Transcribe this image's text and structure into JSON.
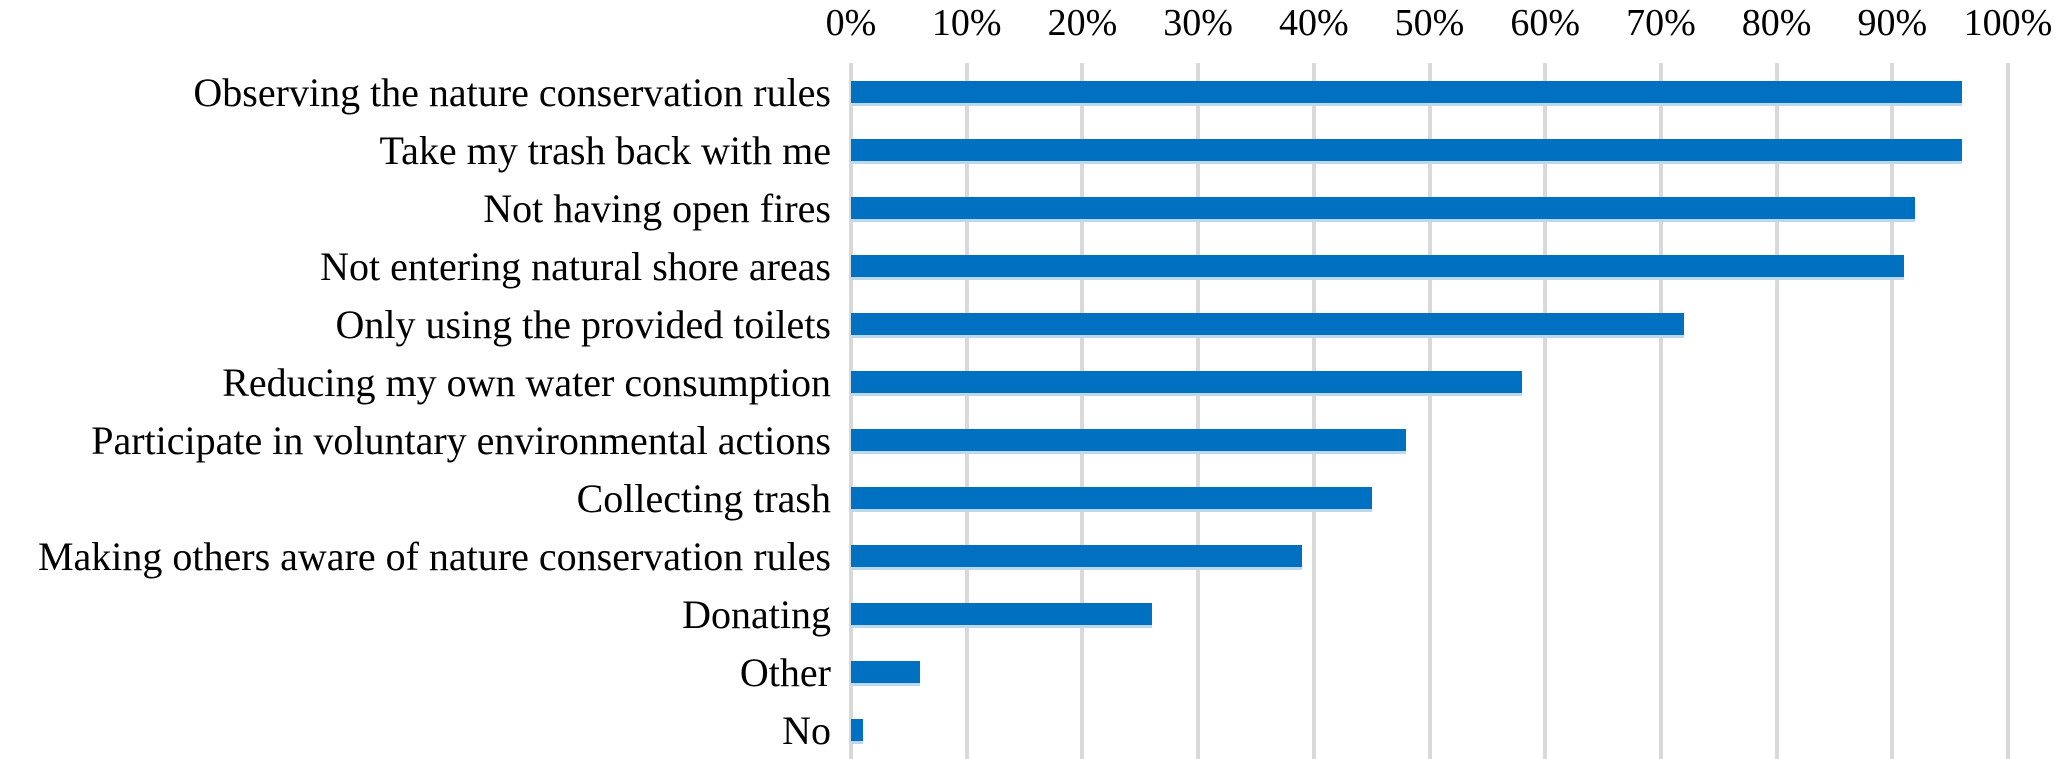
{
  "chart_data": {
    "type": "bar",
    "orientation": "horizontal",
    "title": "",
    "categories": [
      "Observing the nature conservation rules",
      "Take my trash back with me",
      "Not having open fires",
      "Not entering natural shore areas",
      "Only using the provided toilets",
      "Reducing my own water consumption",
      "Participate in voluntary environmental actions",
      "Collecting trash",
      "Making others aware of nature conservation rules",
      "Donating",
      "Other",
      "No"
    ],
    "values": [
      96,
      96,
      92,
      91,
      72,
      58,
      48,
      45,
      39,
      26,
      6,
      1
    ],
    "unit": "%",
    "x_axis": {
      "position": "top",
      "min": 0,
      "max": 100,
      "step": 10,
      "tick_labels": [
        "0%",
        "10%",
        "20%",
        "30%",
        "40%",
        "50%",
        "60%",
        "70%",
        "80%",
        "90%",
        "100%"
      ]
    },
    "y_axis": {
      "label": ""
    },
    "grid": true,
    "legend": false,
    "colors": {
      "bar": "#0070C0",
      "bar_edge": "#BDD7EE",
      "gridline": "#D9D9D9",
      "text": "#000000",
      "background": "#FFFFFF"
    }
  }
}
